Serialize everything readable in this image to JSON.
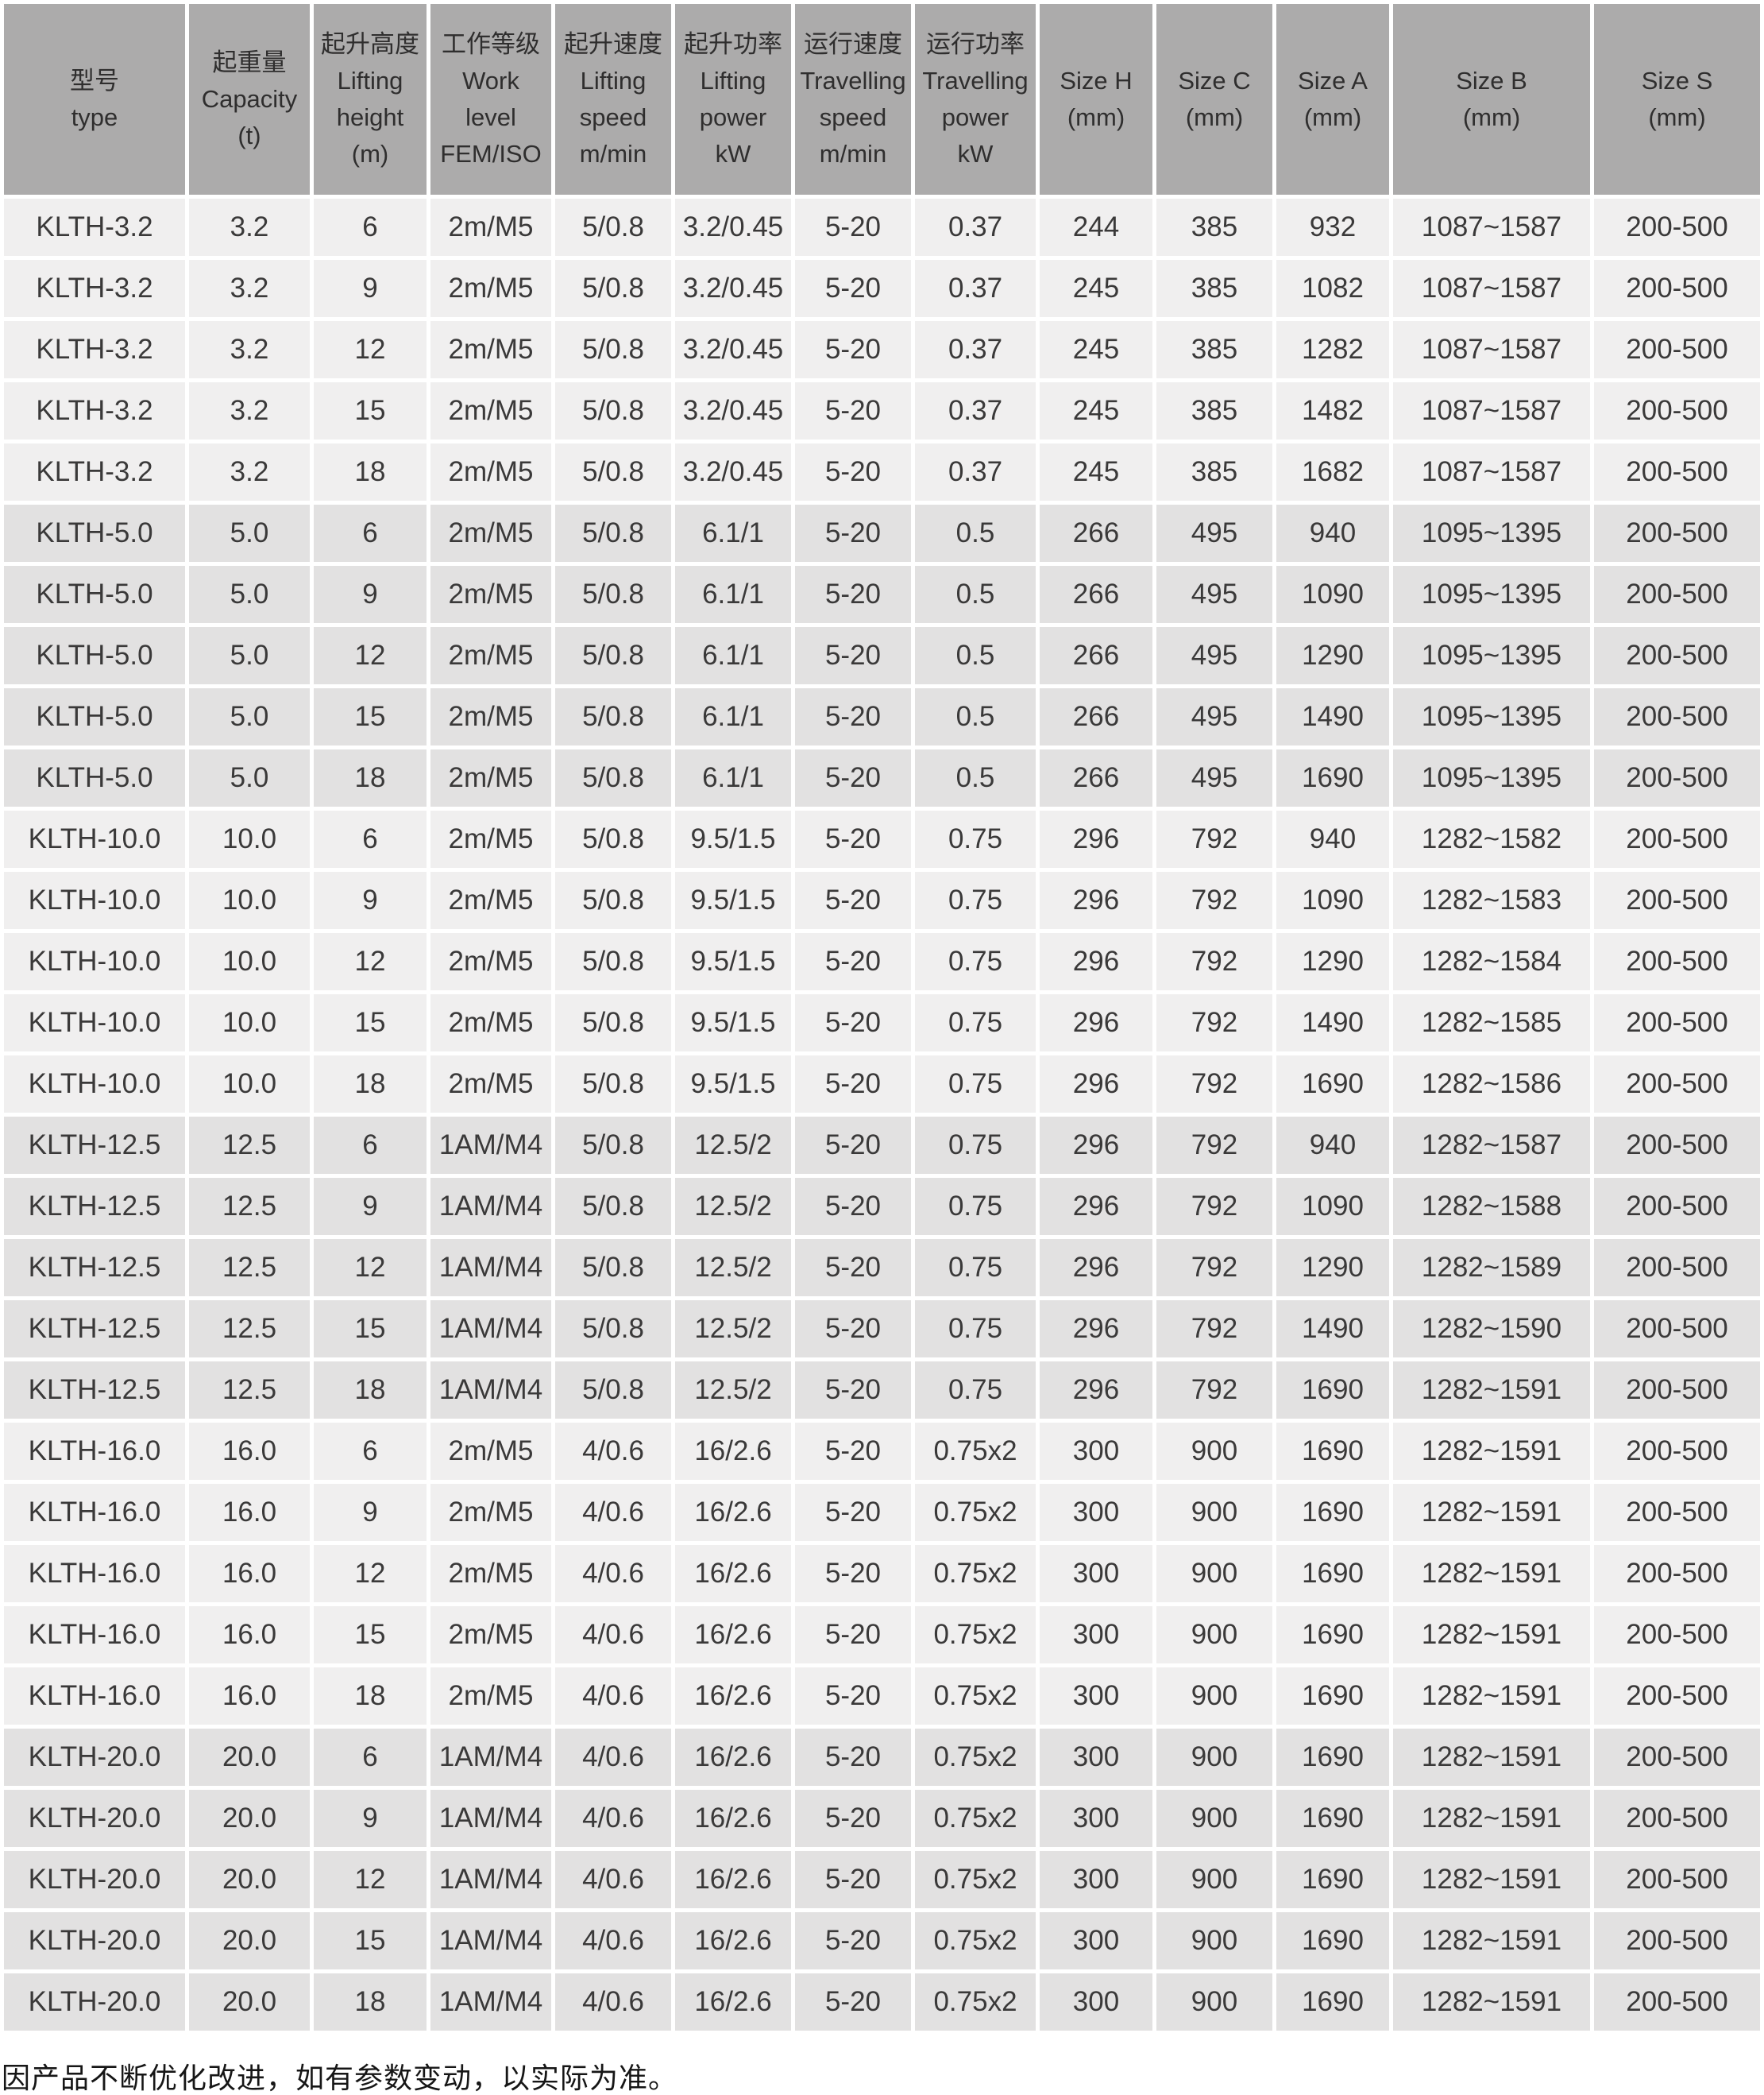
{
  "colors": {
    "header_bg": "#acabab",
    "row_light_bg": "#f0efef",
    "row_dark_bg": "#e2e1e1",
    "grid_gap": "#ffffff",
    "text": "#3a3939"
  },
  "table": {
    "columns": [
      {
        "id": "type",
        "lines": [
          "型号",
          "type"
        ]
      },
      {
        "id": "capacity",
        "lines": [
          "起重量",
          "Capacity",
          "(t)"
        ]
      },
      {
        "id": "lifting-height",
        "lines": [
          "起升高度",
          "Lifting",
          "height",
          "(m)"
        ]
      },
      {
        "id": "work-level",
        "lines": [
          "工作等级",
          "Work",
          "level",
          "FEM/ISO"
        ]
      },
      {
        "id": "lifting-speed",
        "lines": [
          "起升速度",
          "Lifting",
          "speed",
          "m/min"
        ]
      },
      {
        "id": "lifting-power",
        "lines": [
          "起升功率",
          "Lifting",
          "power",
          "kW"
        ]
      },
      {
        "id": "travelling-speed",
        "lines": [
          "运行速度",
          "Travelling",
          "speed",
          "m/min"
        ]
      },
      {
        "id": "travelling-power",
        "lines": [
          "运行功率",
          "Travelling",
          "power",
          "kW"
        ]
      },
      {
        "id": "size-h",
        "lines": [
          "Size H",
          "(mm)"
        ]
      },
      {
        "id": "size-c",
        "lines": [
          "Size C",
          "(mm)"
        ]
      },
      {
        "id": "size-a",
        "lines": [
          "Size A",
          "(mm)"
        ]
      },
      {
        "id": "size-b",
        "lines": [
          "Size B",
          "(mm)"
        ]
      },
      {
        "id": "size-s",
        "lines": [
          "Size S",
          "(mm)"
        ]
      }
    ],
    "rows": [
      {
        "shade": "light",
        "cells": [
          "KLTH-3.2",
          "3.2",
          "6",
          "2m/M5",
          "5/0.8",
          "3.2/0.45",
          "5-20",
          "0.37",
          "244",
          "385",
          "932",
          "1087~1587",
          "200-500"
        ]
      },
      {
        "shade": "light",
        "cells": [
          "KLTH-3.2",
          "3.2",
          "9",
          "2m/M5",
          "5/0.8",
          "3.2/0.45",
          "5-20",
          "0.37",
          "245",
          "385",
          "1082",
          "1087~1587",
          "200-500"
        ]
      },
      {
        "shade": "light",
        "cells": [
          "KLTH-3.2",
          "3.2",
          "12",
          "2m/M5",
          "5/0.8",
          "3.2/0.45",
          "5-20",
          "0.37",
          "245",
          "385",
          "1282",
          "1087~1587",
          "200-500"
        ]
      },
      {
        "shade": "light",
        "cells": [
          "KLTH-3.2",
          "3.2",
          "15",
          "2m/M5",
          "5/0.8",
          "3.2/0.45",
          "5-20",
          "0.37",
          "245",
          "385",
          "1482",
          "1087~1587",
          "200-500"
        ]
      },
      {
        "shade": "light",
        "cells": [
          "KLTH-3.2",
          "3.2",
          "18",
          "2m/M5",
          "5/0.8",
          "3.2/0.45",
          "5-20",
          "0.37",
          "245",
          "385",
          "1682",
          "1087~1587",
          "200-500"
        ]
      },
      {
        "shade": "dark",
        "cells": [
          "KLTH-5.0",
          "5.0",
          "6",
          "2m/M5",
          "5/0.8",
          "6.1/1",
          "5-20",
          "0.5",
          "266",
          "495",
          "940",
          "1095~1395",
          "200-500"
        ]
      },
      {
        "shade": "dark",
        "cells": [
          "KLTH-5.0",
          "5.0",
          "9",
          "2m/M5",
          "5/0.8",
          "6.1/1",
          "5-20",
          "0.5",
          "266",
          "495",
          "1090",
          "1095~1395",
          "200-500"
        ]
      },
      {
        "shade": "dark",
        "cells": [
          "KLTH-5.0",
          "5.0",
          "12",
          "2m/M5",
          "5/0.8",
          "6.1/1",
          "5-20",
          "0.5",
          "266",
          "495",
          "1290",
          "1095~1395",
          "200-500"
        ]
      },
      {
        "shade": "dark",
        "cells": [
          "KLTH-5.0",
          "5.0",
          "15",
          "2m/M5",
          "5/0.8",
          "6.1/1",
          "5-20",
          "0.5",
          "266",
          "495",
          "1490",
          "1095~1395",
          "200-500"
        ]
      },
      {
        "shade": "dark",
        "cells": [
          "KLTH-5.0",
          "5.0",
          "18",
          "2m/M5",
          "5/0.8",
          "6.1/1",
          "5-20",
          "0.5",
          "266",
          "495",
          "1690",
          "1095~1395",
          "200-500"
        ]
      },
      {
        "shade": "light",
        "cells": [
          "KLTH-10.0",
          "10.0",
          "6",
          "2m/M5",
          "5/0.8",
          "9.5/1.5",
          "5-20",
          "0.75",
          "296",
          "792",
          "940",
          "1282~1582",
          "200-500"
        ]
      },
      {
        "shade": "light",
        "cells": [
          "KLTH-10.0",
          "10.0",
          "9",
          "2m/M5",
          "5/0.8",
          "9.5/1.5",
          "5-20",
          "0.75",
          "296",
          "792",
          "1090",
          "1282~1583",
          "200-500"
        ]
      },
      {
        "shade": "light",
        "cells": [
          "KLTH-10.0",
          "10.0",
          "12",
          "2m/M5",
          "5/0.8",
          "9.5/1.5",
          "5-20",
          "0.75",
          "296",
          "792",
          "1290",
          "1282~1584",
          "200-500"
        ]
      },
      {
        "shade": "light",
        "cells": [
          "KLTH-10.0",
          "10.0",
          "15",
          "2m/M5",
          "5/0.8",
          "9.5/1.5",
          "5-20",
          "0.75",
          "296",
          "792",
          "1490",
          "1282~1585",
          "200-500"
        ]
      },
      {
        "shade": "light",
        "cells": [
          "KLTH-10.0",
          "10.0",
          "18",
          "2m/M5",
          "5/0.8",
          "9.5/1.5",
          "5-20",
          "0.75",
          "296",
          "792",
          "1690",
          "1282~1586",
          "200-500"
        ]
      },
      {
        "shade": "dark",
        "cells": [
          "KLTH-12.5",
          "12.5",
          "6",
          "1AM/M4",
          "5/0.8",
          "12.5/2",
          "5-20",
          "0.75",
          "296",
          "792",
          "940",
          "1282~1587",
          "200-500"
        ]
      },
      {
        "shade": "dark",
        "cells": [
          "KLTH-12.5",
          "12.5",
          "9",
          "1AM/M4",
          "5/0.8",
          "12.5/2",
          "5-20",
          "0.75",
          "296",
          "792",
          "1090",
          "1282~1588",
          "200-500"
        ]
      },
      {
        "shade": "dark",
        "cells": [
          "KLTH-12.5",
          "12.5",
          "12",
          "1AM/M4",
          "5/0.8",
          "12.5/2",
          "5-20",
          "0.75",
          "296",
          "792",
          "1290",
          "1282~1589",
          "200-500"
        ]
      },
      {
        "shade": "dark",
        "cells": [
          "KLTH-12.5",
          "12.5",
          "15",
          "1AM/M4",
          "5/0.8",
          "12.5/2",
          "5-20",
          "0.75",
          "296",
          "792",
          "1490",
          "1282~1590",
          "200-500"
        ]
      },
      {
        "shade": "dark",
        "cells": [
          "KLTH-12.5",
          "12.5",
          "18",
          "1AM/M4",
          "5/0.8",
          "12.5/2",
          "5-20",
          "0.75",
          "296",
          "792",
          "1690",
          "1282~1591",
          "200-500"
        ]
      },
      {
        "shade": "light",
        "cells": [
          "KLTH-16.0",
          "16.0",
          "6",
          "2m/M5",
          "4/0.6",
          "16/2.6",
          "5-20",
          "0.75x2",
          "300",
          "900",
          "1690",
          "1282~1591",
          "200-500"
        ]
      },
      {
        "shade": "light",
        "cells": [
          "KLTH-16.0",
          "16.0",
          "9",
          "2m/M5",
          "4/0.6",
          "16/2.6",
          "5-20",
          "0.75x2",
          "300",
          "900",
          "1690",
          "1282~1591",
          "200-500"
        ]
      },
      {
        "shade": "light",
        "cells": [
          "KLTH-16.0",
          "16.0",
          "12",
          "2m/M5",
          "4/0.6",
          "16/2.6",
          "5-20",
          "0.75x2",
          "300",
          "900",
          "1690",
          "1282~1591",
          "200-500"
        ]
      },
      {
        "shade": "light",
        "cells": [
          "KLTH-16.0",
          "16.0",
          "15",
          "2m/M5",
          "4/0.6",
          "16/2.6",
          "5-20",
          "0.75x2",
          "300",
          "900",
          "1690",
          "1282~1591",
          "200-500"
        ]
      },
      {
        "shade": "light",
        "cells": [
          "KLTH-16.0",
          "16.0",
          "18",
          "2m/M5",
          "4/0.6",
          "16/2.6",
          "5-20",
          "0.75x2",
          "300",
          "900",
          "1690",
          "1282~1591",
          "200-500"
        ]
      },
      {
        "shade": "dark",
        "cells": [
          "KLTH-20.0",
          "20.0",
          "6",
          "1AM/M4",
          "4/0.6",
          "16/2.6",
          "5-20",
          "0.75x2",
          "300",
          "900",
          "1690",
          "1282~1591",
          "200-500"
        ]
      },
      {
        "shade": "dark",
        "cells": [
          "KLTH-20.0",
          "20.0",
          "9",
          "1AM/M4",
          "4/0.6",
          "16/2.6",
          "5-20",
          "0.75x2",
          "300",
          "900",
          "1690",
          "1282~1591",
          "200-500"
        ]
      },
      {
        "shade": "dark",
        "cells": [
          "KLTH-20.0",
          "20.0",
          "12",
          "1AM/M4",
          "4/0.6",
          "16/2.6",
          "5-20",
          "0.75x2",
          "300",
          "900",
          "1690",
          "1282~1591",
          "200-500"
        ]
      },
      {
        "shade": "dark",
        "cells": [
          "KLTH-20.0",
          "20.0",
          "15",
          "1AM/M4",
          "4/0.6",
          "16/2.6",
          "5-20",
          "0.75x2",
          "300",
          "900",
          "1690",
          "1282~1591",
          "200-500"
        ]
      },
      {
        "shade": "dark",
        "cells": [
          "KLTH-20.0",
          "20.0",
          "18",
          "1AM/M4",
          "4/0.6",
          "16/2.6",
          "5-20",
          "0.75x2",
          "300",
          "900",
          "1690",
          "1282~1591",
          "200-500"
        ]
      }
    ]
  },
  "footer": {
    "note": "因产品不断优化改进，如有参数变动，以实际为准。"
  }
}
